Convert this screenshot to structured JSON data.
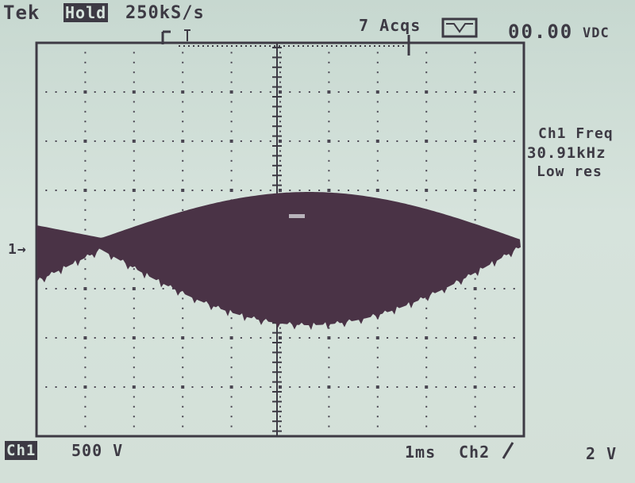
{
  "status_bar": {
    "brand": "Tek",
    "mode": "Hold",
    "sample_rate": "250kS/s",
    "acquisitions": "7 Acqs",
    "readout_value": "00.00",
    "readout_unit": "VDC"
  },
  "measurement": {
    "label": "Ch1 Freq",
    "value": "30.91kHz",
    "resolution": "Low res"
  },
  "markers": {
    "channel_ground": "1→",
    "trigger_position": "T"
  },
  "bottom_bar": {
    "channel_1": "Ch1",
    "volts_per_div": "500 V",
    "time_per_div": "1ms",
    "trigger_source": "Ch2",
    "trigger_slope": "/",
    "trigger_level": "2 V"
  },
  "colors": {
    "screen": "#d6e3dc",
    "trace": "#4a3346",
    "text": "#3d3a44"
  },
  "icons": {
    "acquire": "peak-detect-icon",
    "slope": "rising-edge-icon"
  }
}
